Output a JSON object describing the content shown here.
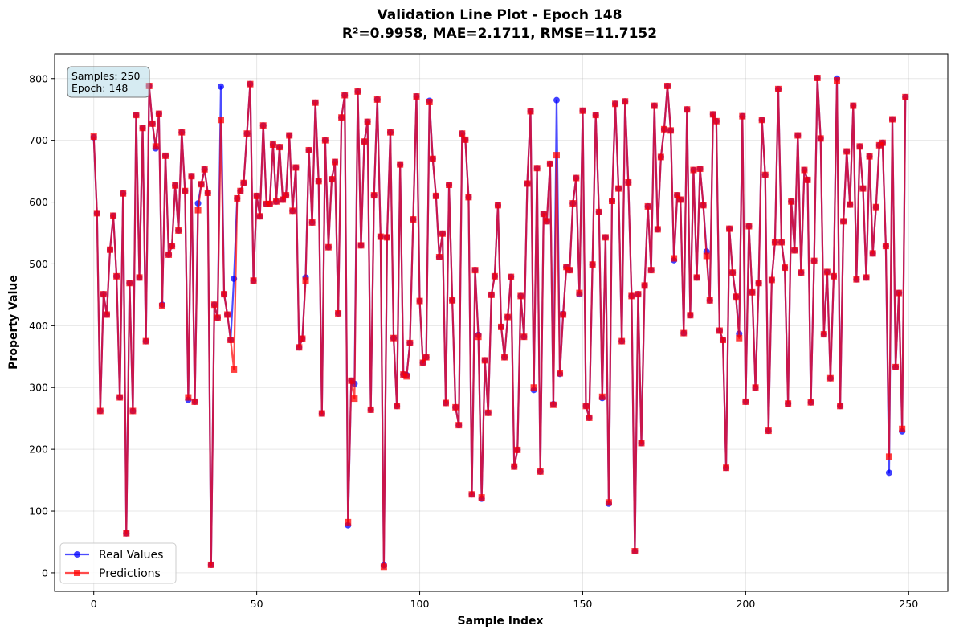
{
  "chart_data": {
    "type": "line",
    "title": "Validation Line Plot - Epoch 148",
    "subtitle": "R²=0.9958, MAE=2.1711, RMSE=11.7152",
    "xlabel": "Sample Index",
    "ylabel": "Property Value",
    "xlim": [
      -12,
      262
    ],
    "ylim": [
      -30,
      840
    ],
    "xticks": [
      0,
      50,
      100,
      150,
      200,
      250
    ],
    "yticks": [
      0,
      100,
      200,
      300,
      400,
      500,
      600,
      700,
      800
    ],
    "grid": true,
    "legend_position": "lower-left",
    "info_box": [
      "Samples: 250",
      "Epoch: 148"
    ],
    "series": [
      {
        "name": "Real Values",
        "color": "#0000ff",
        "marker": "circle",
        "values": [
          705,
          582,
          262,
          451,
          418,
          523,
          578,
          480,
          284,
          614,
          64,
          469,
          262,
          741,
          478,
          720,
          375,
          788,
          727,
          687,
          743,
          434,
          675,
          515,
          529,
          627,
          554,
          713,
          618,
          280,
          642,
          277,
          598,
          629,
          653,
          615,
          13,
          434,
          413,
          787,
          451,
          418,
          377,
          476,
          606,
          618,
          631,
          711,
          791,
          473,
          610,
          577,
          724,
          597,
          597,
          693,
          601,
          689,
          604,
          611,
          708,
          586,
          656,
          365,
          379,
          478,
          684,
          567,
          761,
          634,
          258,
          700,
          527,
          637,
          665,
          420,
          737,
          773,
          77,
          311,
          306,
          779,
          530,
          698,
          730,
          264,
          611,
          766,
          544,
          12,
          543,
          713,
          380,
          270,
          661,
          321,
          320,
          372,
          572,
          771,
          440,
          340,
          349,
          764,
          670,
          610,
          511,
          549,
          275,
          628,
          441,
          268,
          239,
          711,
          701,
          608,
          127,
          490,
          385,
          120,
          344,
          259,
          450,
          480,
          595,
          398,
          349,
          414,
          479,
          172,
          199,
          448,
          382,
          630,
          747,
          296,
          655,
          164,
          581,
          569,
          662,
          273,
          765,
          322,
          419,
          495,
          490,
          598,
          639,
          451,
          748,
          270,
          251,
          499,
          741,
          584,
          283,
          543,
          112,
          602,
          759,
          622,
          375,
          763,
          632,
          448,
          35,
          451,
          210,
          465,
          593,
          490,
          756,
          556,
          673,
          718,
          788,
          716,
          506,
          611,
          604,
          388,
          750,
          417,
          652,
          478,
          654,
          595,
          520,
          441,
          742,
          731,
          392,
          377,
          170,
          557,
          486,
          447,
          387,
          739,
          277,
          561,
          454,
          300,
          469,
          733,
          644,
          230,
          474,
          535,
          783,
          535,
          494,
          274,
          601,
          522,
          708,
          486,
          652,
          636,
          276,
          505,
          801,
          703,
          386,
          487,
          315,
          480,
          800,
          270,
          569,
          682,
          596,
          756,
          475,
          690,
          622,
          478,
          674,
          517,
          592,
          692,
          696,
          529,
          162,
          734,
          333,
          453,
          229,
          770
        ]
      },
      {
        "name": "Predictions",
        "color": "#ff0000",
        "marker": "square",
        "values": [
          706,
          582,
          262,
          451,
          418,
          523,
          578,
          480,
          284,
          614,
          64,
          469,
          262,
          741,
          478,
          720,
          375,
          788,
          727,
          690,
          743,
          432,
          675,
          515,
          529,
          627,
          554,
          713,
          618,
          284,
          642,
          277,
          587,
          629,
          653,
          615,
          13,
          434,
          413,
          733,
          451,
          418,
          377,
          329,
          606,
          618,
          631,
          711,
          791,
          473,
          610,
          577,
          724,
          597,
          597,
          693,
          601,
          689,
          604,
          611,
          708,
          586,
          656,
          365,
          379,
          473,
          684,
          567,
          761,
          634,
          258,
          700,
          527,
          637,
          665,
          420,
          737,
          773,
          82,
          311,
          282,
          779,
          530,
          698,
          730,
          264,
          611,
          766,
          544,
          10,
          543,
          713,
          380,
          270,
          661,
          321,
          318,
          372,
          572,
          771,
          440,
          340,
          349,
          762,
          670,
          610,
          511,
          549,
          275,
          628,
          441,
          268,
          239,
          711,
          701,
          608,
          127,
          490,
          382,
          122,
          344,
          259,
          450,
          480,
          595,
          398,
          349,
          414,
          479,
          172,
          199,
          448,
          382,
          630,
          747,
          300,
          655,
          164,
          581,
          569,
          662,
          272,
          676,
          323,
          418,
          495,
          490,
          598,
          639,
          453,
          748,
          270,
          251,
          499,
          741,
          584,
          285,
          543,
          114,
          602,
          759,
          622,
          375,
          763,
          632,
          448,
          35,
          451,
          210,
          465,
          593,
          490,
          756,
          556,
          673,
          718,
          788,
          716,
          509,
          611,
          604,
          388,
          750,
          417,
          652,
          478,
          654,
          595,
          513,
          441,
          742,
          731,
          392,
          377,
          170,
          557,
          486,
          447,
          380,
          739,
          277,
          561,
          454,
          300,
          469,
          733,
          644,
          230,
          474,
          535,
          783,
          535,
          494,
          274,
          601,
          522,
          708,
          486,
          652,
          636,
          276,
          505,
          801,
          703,
          386,
          487,
          315,
          480,
          797,
          270,
          569,
          682,
          596,
          756,
          475,
          690,
          622,
          478,
          674,
          517,
          592,
          692,
          696,
          529,
          188,
          734,
          333,
          453,
          233,
          770
        ]
      }
    ]
  }
}
